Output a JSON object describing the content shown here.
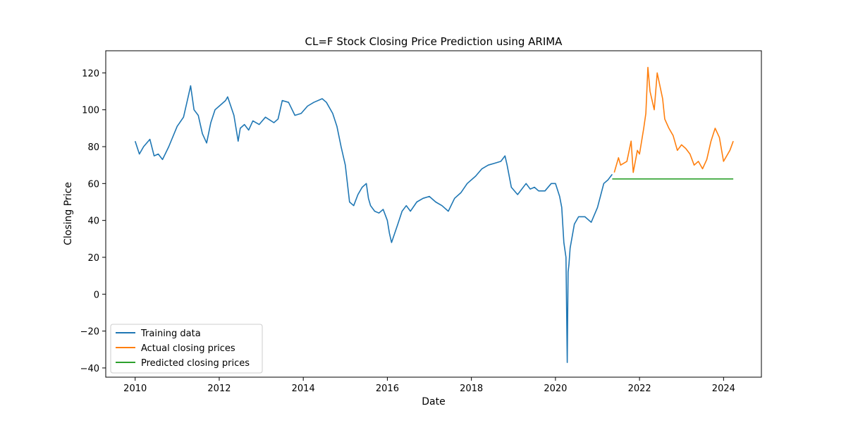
{
  "chart_data": {
    "type": "line",
    "title": "CL=F Stock Closing Price Prediction using ARIMA",
    "xlabel": "Date",
    "ylabel": "Closing Price",
    "xlim": [
      2009.3,
      2024.9
    ],
    "ylim": [
      -45,
      132
    ],
    "x_ticks": [
      {
        "value": 2010,
        "label": "2010"
      },
      {
        "value": 2012,
        "label": "2012"
      },
      {
        "value": 2014,
        "label": "2014"
      },
      {
        "value": 2016,
        "label": "2016"
      },
      {
        "value": 2018,
        "label": "2018"
      },
      {
        "value": 2020,
        "label": "2020"
      },
      {
        "value": 2022,
        "label": "2022"
      },
      {
        "value": 2024,
        "label": "2024"
      }
    ],
    "y_ticks": [
      {
        "value": -40,
        "label": "−40"
      },
      {
        "value": -20,
        "label": "−20"
      },
      {
        "value": 0,
        "label": "0"
      },
      {
        "value": 20,
        "label": "20"
      },
      {
        "value": 40,
        "label": "40"
      },
      {
        "value": 60,
        "label": "60"
      },
      {
        "value": 80,
        "label": "80"
      },
      {
        "value": 100,
        "label": "100"
      },
      {
        "value": 120,
        "label": "120"
      }
    ],
    "grid": false,
    "legend_position": "lower-left",
    "series": [
      {
        "name": "Training data",
        "color": "#1f77b4",
        "x": [
          2010.0,
          2010.1,
          2010.2,
          2010.35,
          2010.45,
          2010.55,
          2010.65,
          2010.8,
          2011.0,
          2011.15,
          2011.25,
          2011.32,
          2011.4,
          2011.5,
          2011.6,
          2011.7,
          2011.8,
          2011.9,
          2012.0,
          2012.15,
          2012.2,
          2012.35,
          2012.45,
          2012.5,
          2012.6,
          2012.7,
          2012.8,
          2012.95,
          2013.1,
          2013.3,
          2013.4,
          2013.5,
          2013.65,
          2013.8,
          2013.95,
          2014.1,
          2014.25,
          2014.45,
          2014.55,
          2014.7,
          2014.8,
          2014.9,
          2015.0,
          2015.05,
          2015.1,
          2015.2,
          2015.3,
          2015.4,
          2015.5,
          2015.55,
          2015.6,
          2015.7,
          2015.8,
          2015.9,
          2016.0,
          2016.05,
          2016.1,
          2016.25,
          2016.35,
          2016.45,
          2016.55,
          2016.7,
          2016.85,
          2017.0,
          2017.15,
          2017.3,
          2017.45,
          2017.6,
          2017.75,
          2017.9,
          2018.1,
          2018.25,
          2018.4,
          2018.55,
          2018.7,
          2018.8,
          2018.85,
          2018.95,
          2019.1,
          2019.3,
          2019.4,
          2019.5,
          2019.6,
          2019.75,
          2019.9,
          2020.0,
          2020.1,
          2020.15,
          2020.2,
          2020.25,
          2020.28,
          2020.3,
          2020.32,
          2020.35,
          2020.45,
          2020.55,
          2020.7,
          2020.85,
          2021.0,
          2021.15,
          2021.25,
          2021.35
        ],
        "y": [
          83,
          76,
          80,
          84,
          75,
          76,
          73,
          80,
          91,
          96,
          106,
          113,
          100,
          97,
          87,
          82,
          93,
          100,
          102,
          105,
          107,
          97,
          83,
          90,
          92,
          89,
          94,
          92,
          96,
          93,
          95,
          105,
          104,
          97,
          98,
          102,
          104,
          106,
          104,
          98,
          91,
          80,
          70,
          60,
          50,
          48,
          54,
          58,
          60,
          52,
          48,
          45,
          44,
          46,
          40,
          33,
          28,
          38,
          45,
          48,
          45,
          50,
          52,
          53,
          50,
          48,
          45,
          52,
          55,
          60,
          64,
          68,
          70,
          71,
          72,
          75,
          70,
          58,
          54,
          60,
          57,
          58,
          56,
          56,
          60,
          60,
          53,
          47,
          28,
          20,
          -37,
          12,
          16,
          25,
          38,
          42,
          42,
          39,
          47,
          60,
          62,
          65
        ]
      },
      {
        "name": "Actual closing prices",
        "color": "#ff7f0e",
        "x": [
          2021.4,
          2021.5,
          2021.55,
          2021.7,
          2021.8,
          2021.85,
          2021.95,
          2022.0,
          2022.1,
          2022.15,
          2022.2,
          2022.25,
          2022.35,
          2022.42,
          2022.55,
          2022.6,
          2022.7,
          2022.8,
          2022.9,
          2023.0,
          2023.1,
          2023.2,
          2023.3,
          2023.4,
          2023.5,
          2023.6,
          2023.7,
          2023.8,
          2023.9,
          2024.0,
          2024.15,
          2024.23
        ],
        "y": [
          66,
          74,
          70,
          72,
          83,
          66,
          78,
          76,
          90,
          98,
          123,
          110,
          100,
          120,
          106,
          95,
          90,
          86,
          78,
          81,
          79,
          76,
          70,
          72,
          68,
          73,
          83,
          90,
          85,
          72,
          78,
          83
        ]
      },
      {
        "name": "Predicted closing prices",
        "color": "#2ca02c",
        "x": [
          2021.35,
          2024.23
        ],
        "y": [
          62.5,
          62.5
        ]
      }
    ]
  }
}
